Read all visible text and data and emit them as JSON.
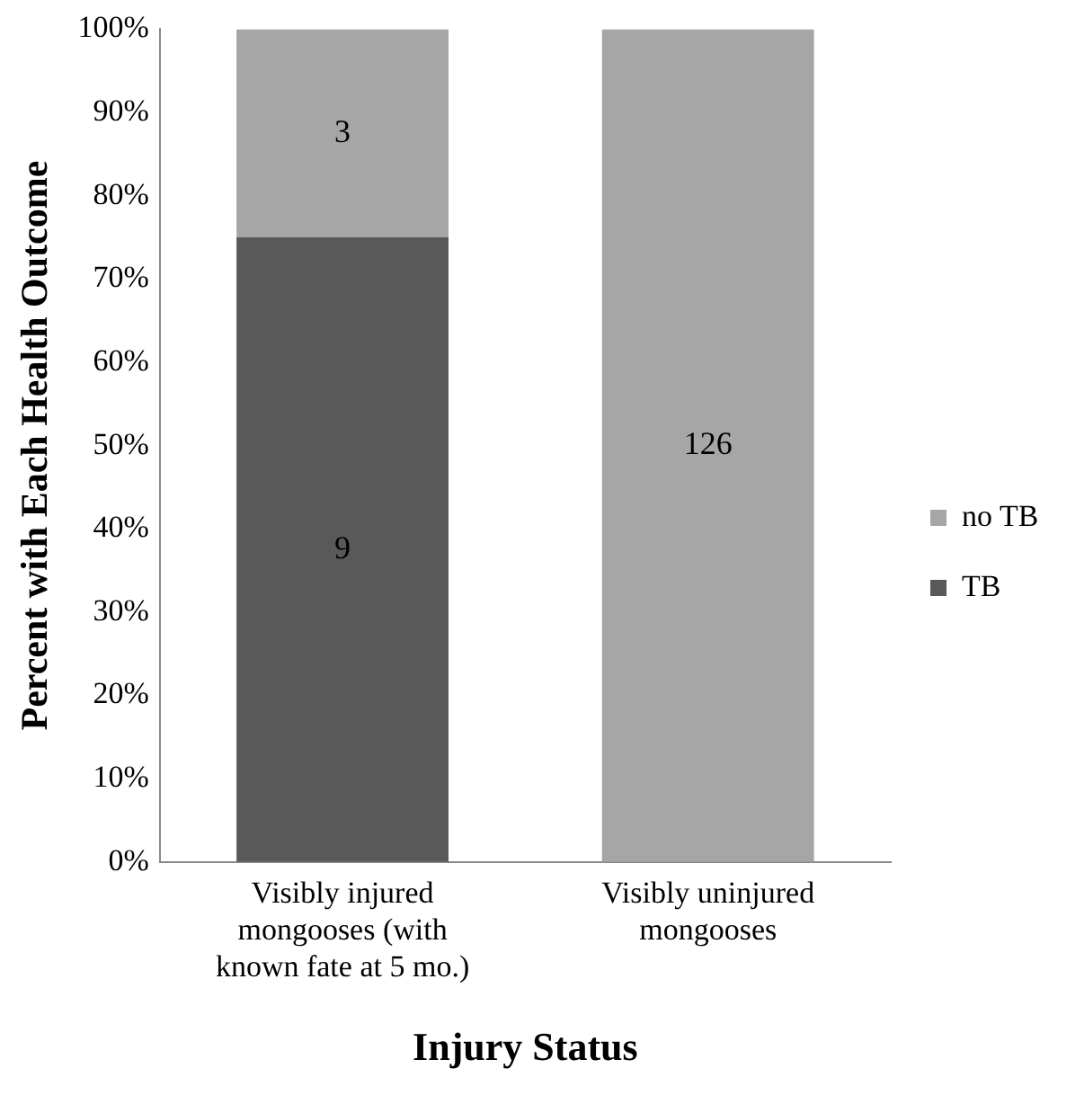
{
  "chart_data": {
    "type": "bar",
    "stacked": true,
    "xlabel": "Injury Status",
    "ylabel": "Percent with Each Health Outcome",
    "categories": [
      "Visibly injured mongooses (with known fate at 5 mo.)",
      "Visibly uninjured mongooses"
    ],
    "series": [
      {
        "name": "TB",
        "color": "#595959",
        "values": [
          75,
          0
        ]
      },
      {
        "name": "no TB",
        "color": "#a6a6a6",
        "values": [
          25,
          100
        ]
      }
    ],
    "annotations": [
      "9",
      "3",
      "126"
    ],
    "ylim": [
      0,
      100
    ],
    "yticks": [
      {
        "value": 0,
        "label": "0%"
      },
      {
        "value": 10,
        "label": "10%"
      },
      {
        "value": 20,
        "label": "20%"
      },
      {
        "value": 30,
        "label": "30%"
      },
      {
        "value": 40,
        "label": "40%"
      },
      {
        "value": 50,
        "label": "50%"
      },
      {
        "value": 60,
        "label": "60%"
      },
      {
        "value": 70,
        "label": "70%"
      },
      {
        "value": 80,
        "label": "80%"
      },
      {
        "value": 90,
        "label": "90%"
      },
      {
        "value": 100,
        "label": "100%"
      }
    ],
    "grid": false,
    "legend": "right"
  }
}
